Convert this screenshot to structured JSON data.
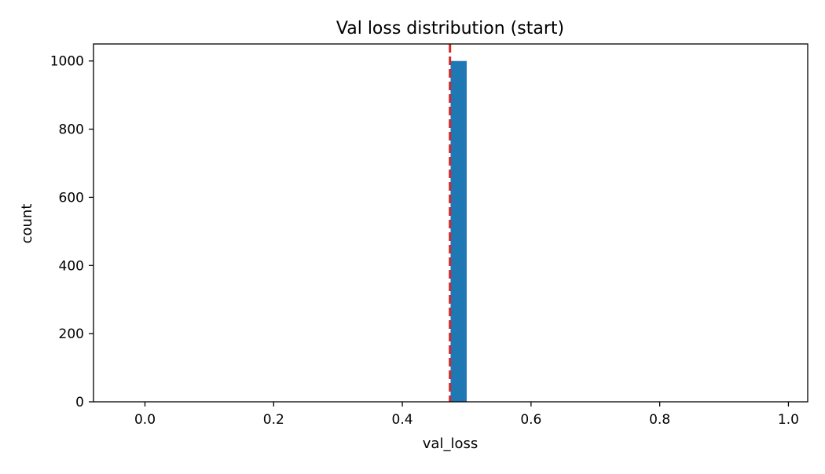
{
  "chart_data": {
    "type": "bar",
    "title": "Val loss distribution (start)",
    "xlabel": "val_loss",
    "ylabel": "count",
    "xlim": [
      -0.08,
      1.03
    ],
    "ylim": [
      0,
      1050
    ],
    "xticks": [
      "0.0",
      "0.2",
      "0.4",
      "0.6",
      "0.8",
      "1.0"
    ],
    "xtick_values": [
      0.0,
      0.2,
      0.4,
      0.6,
      0.8,
      1.0
    ],
    "yticks": [
      "0",
      "200",
      "400",
      "600",
      "800",
      "1000"
    ],
    "ytick_values": [
      0,
      200,
      400,
      600,
      800,
      1000
    ],
    "bins": [
      {
        "x0": 0.475,
        "x1": 0.5,
        "count": 1000
      }
    ],
    "reference_line": {
      "x": 0.474,
      "color": "#d62728",
      "style": "dashed"
    },
    "bar_color": "#1f77b4",
    "grid": false,
    "legend": "none"
  }
}
